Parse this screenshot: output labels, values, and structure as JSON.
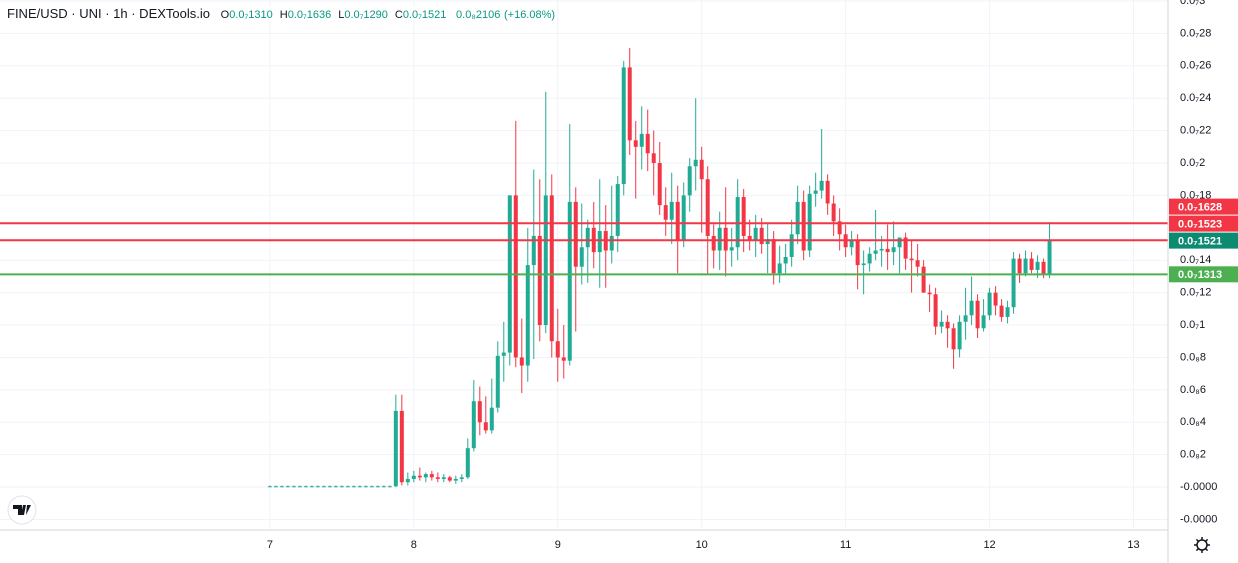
{
  "chart_data": {
    "type": "candlestick",
    "title": "FINE/USD · UNI · 1h · DEXTools.io",
    "ohlc_legend": [
      {
        "key": "O",
        "value": "0.0₇1310"
      },
      {
        "key": "H",
        "value": "0.0₇1636"
      },
      {
        "key": "L",
        "value": "0.0₇1290"
      },
      {
        "key": "C",
        "value": "0.0₇1521"
      }
    ],
    "change": "0.0₈2106",
    "change_pct": "(+16.08%)",
    "up_color": "#22ab94",
    "down_color": "#f23645",
    "x": [
      0,
      1,
      2,
      3,
      4,
      5,
      6,
      7,
      8,
      9,
      10,
      11,
      12,
      13,
      14,
      15,
      16,
      17,
      18,
      19,
      20,
      21,
      22,
      23,
      24,
      25,
      26,
      27,
      28,
      29,
      30,
      31,
      32,
      33,
      34,
      35,
      36,
      37,
      38,
      39,
      40,
      41,
      42,
      43,
      44,
      45,
      46,
      47,
      48,
      49,
      50,
      51,
      52,
      53,
      54,
      55,
      56,
      57,
      58,
      59,
      60,
      61,
      62,
      63,
      64,
      65,
      66,
      67,
      68,
      69,
      70,
      71,
      72,
      73,
      74,
      75,
      76,
      77,
      78,
      79,
      80,
      81,
      82,
      83,
      84,
      85,
      86,
      87,
      88,
      89,
      90,
      91,
      92,
      93,
      94,
      95,
      96,
      97,
      98,
      99,
      100,
      101,
      102,
      103,
      104,
      105,
      106,
      107,
      108,
      109,
      110,
      111,
      112,
      113,
      114,
      115,
      116,
      117,
      118,
      119,
      120,
      121,
      122,
      123,
      124,
      125,
      126,
      127,
      128,
      129,
      130
    ],
    "open": [
      5e-11,
      5e-11,
      5e-11,
      5e-11,
      5e-11,
      5e-11,
      5e-11,
      5e-11,
      5e-11,
      5e-11,
      5e-11,
      5e-11,
      5e-11,
      5e-11,
      5e-11,
      5e-11,
      5e-11,
      5e-11,
      5e-11,
      5e-11,
      5e-11,
      5e-11,
      4.7e-09,
      3e-10,
      5e-10,
      7e-10,
      6e-10,
      8e-10,
      6e-10,
      5e-10,
      6e-10,
      4e-10,
      5e-10,
      6e-10,
      2.4e-09,
      5.3e-09,
      4e-09,
      3.5e-09,
      4.9e-09,
      8.1e-09,
      8.3e-09,
      1.8e-08,
      8e-09,
      7.5e-09,
      1.37e-08,
      1.55e-08,
      1e-08,
      1.8e-08,
      9e-09,
      8e-09,
      7.8e-09,
      1.76e-08,
      1.36e-08,
      1.48e-08,
      1.6e-08,
      1.45e-08,
      1.58e-08,
      1.46e-08,
      1.55e-08,
      1.87e-08,
      2.59e-08,
      2.14e-08,
      2.1e-08,
      2.18e-08,
      2.06e-08,
      2e-08,
      1.74e-08,
      1.65e-08,
      1.76e-08,
      1.52e-08,
      1.8e-08,
      1.98e-08,
      2.02e-08,
      1.9e-08,
      1.55e-08,
      1.46e-08,
      1.6e-08,
      1.46e-08,
      1.48e-08,
      1.79e-08,
      1.55e-08,
      1.52e-08,
      1.6e-08,
      1.5e-08,
      1.53e-08,
      1.32e-08,
      1.38e-08,
      1.42e-08,
      1.56e-08,
      1.76e-08,
      1.46e-08,
      1.81e-08,
      1.83e-08,
      1.89e-08,
      1.75e-08,
      1.64e-08,
      1.56e-08,
      1.48e-08,
      1.52e-08,
      1.37e-08,
      1.38e-08,
      1.44e-08,
      1.46e-08,
      1.47e-08,
      1.45e-08,
      1.48e-08,
      1.54e-08,
      1.41e-08,
      1.4e-08,
      1.36e-08,
      1.2e-08,
      1.19e-08,
      9.9e-09,
      1.02e-08,
      9.8e-09,
      8.5e-09,
      1.02e-08,
      1.06e-08,
      1.15e-08,
      9.8e-09,
      1.06e-08,
      1.2e-08,
      1.12e-08,
      1.05e-08,
      1.11e-08,
      1.41e-08,
      1.32e-08,
      1.41e-08,
      1.34e-08,
      1.39e-08,
      1.31e-08
    ],
    "high": [
      1e-10,
      1e-10,
      1e-10,
      1e-10,
      1e-10,
      1e-10,
      1e-10,
      1e-10,
      1e-10,
      1e-10,
      1e-10,
      1e-10,
      1e-10,
      1e-10,
      1e-10,
      1e-10,
      1e-10,
      1e-10,
      1e-10,
      1e-10,
      1e-10,
      5.7e-09,
      5.7e-09,
      9e-10,
      1e-09,
      1.2e-09,
      9e-10,
      1e-09,
      9e-10,
      8e-10,
      7e-10,
      7e-10,
      8e-10,
      3e-09,
      6.6e-09,
      6.2e-09,
      5.6e-09,
      6.7e-09,
      9e-09,
      1.02e-08,
      1.8e-08,
      2.26e-08,
      1.04e-08,
      1.6e-08,
      1.96e-08,
      1.9e-08,
      2.44e-08,
      1.93e-08,
      1.1e-08,
      1e-08,
      2.24e-08,
      1.85e-08,
      1.75e-08,
      1.65e-08,
      1.76e-08,
      1.9e-08,
      1.74e-08,
      1.86e-08,
      1.92e-08,
      2.63e-08,
      2.71e-08,
      2.26e-08,
      2.35e-08,
      2.33e-08,
      2.2e-08,
      2.13e-08,
      1.85e-08,
      1.94e-08,
      1.86e-08,
      1.88e-08,
      2.03e-08,
      2.4e-08,
      2.1e-08,
      1.98e-08,
      1.62e-08,
      1.7e-08,
      1.85e-08,
      1.6e-08,
      1.9e-08,
      1.84e-08,
      1.65e-08,
      1.68e-08,
      1.66e-08,
      1.63e-08,
      1.58e-08,
      1.49e-08,
      1.5e-08,
      1.65e-08,
      1.86e-08,
      1.83e-08,
      1.86e-08,
      1.94e-08,
      2.21e-08,
      1.93e-08,
      1.8e-08,
      1.72e-08,
      1.62e-08,
      1.58e-08,
      1.56e-08,
      1.46e-08,
      1.48e-08,
      1.71e-08,
      1.55e-08,
      1.62e-08,
      1.64e-08,
      1.54e-08,
      1.57e-08,
      1.52e-08,
      1.5e-08,
      1.4e-08,
      1.25e-08,
      1.23e-08,
      1.09e-08,
      1.06e-08,
      1.01e-08,
      1.06e-08,
      1.23e-08,
      1.3e-08,
      1.19e-08,
      1.16e-08,
      1.23e-08,
      1.24e-08,
      1.16e-08,
      1.15e-08,
      1.45e-08,
      1.44e-08,
      1.46e-08,
      1.45e-08,
      1.43e-08,
      1.41e-08,
      1.636e-08
    ],
    "low": [
      0,
      0,
      0,
      0,
      0,
      0,
      0,
      0,
      0,
      0,
      0,
      0,
      0,
      0,
      0,
      0,
      0,
      0,
      0,
      0,
      0,
      0,
      1e-10,
      1e-10,
      3e-10,
      4e-10,
      3e-10,
      4e-10,
      3e-10,
      3e-10,
      3e-10,
      2e-10,
      3e-10,
      5e-10,
      2.2e-09,
      3.2e-09,
      3.3e-09,
      3.3e-09,
      4.6e-09,
      6.5e-09,
      7.5e-09,
      7.4e-09,
      5.8e-09,
      6.5e-09,
      7.9e-09,
      9e-09,
      9.5e-09,
      8e-09,
      6.5e-09,
      6.7e-09,
      7.5e-09,
      9.6e-09,
      1.25e-08,
      1.26e-08,
      1.35e-08,
      1.23e-08,
      1.23e-08,
      1.38e-08,
      1.45e-08,
      1.8e-08,
      2.05e-08,
      1.78e-08,
      1.96e-08,
      1.95e-08,
      1.8e-08,
      1.68e-08,
      1.55e-08,
      1.5e-08,
      1.32e-08,
      1.48e-08,
      1.7e-08,
      1.83e-08,
      1.57e-08,
      1.31e-08,
      1.35e-08,
      1.34e-08,
      1.3e-08,
      1.36e-08,
      1.4e-08,
      1.45e-08,
      1.46e-08,
      1.42e-08,
      1.44e-08,
      1.32e-08,
      1.25e-08,
      1.26e-08,
      1.31e-08,
      1.36e-08,
      1.5e-08,
      1.4e-08,
      1.42e-08,
      1.73e-08,
      1.78e-08,
      1.68e-08,
      1.55e-08,
      1.46e-08,
      1.42e-08,
      1.43e-08,
      1.22e-08,
      1.19e-08,
      1.33e-08,
      1.4e-08,
      1.36e-08,
      1.34e-08,
      1.37e-08,
      1.32e-08,
      1.34e-08,
      1.2e-08,
      1.3e-08,
      1.2e-08,
      1.08e-08,
      9.4e-09,
      9.5e-09,
      8.6e-09,
      7.3e-09,
      8e-09,
      9.1e-09,
      1e-08,
      9.2e-09,
      9.6e-09,
      1.03e-08,
      1.06e-08,
      1.02e-08,
      1.01e-08,
      1.07e-08,
      1.26e-08,
      1.3e-08,
      1.32e-08,
      1.29e-08,
      1.29e-08,
      1.29e-08
    ],
    "close": [
      5e-11,
      5e-11,
      5e-11,
      5e-11,
      5e-11,
      5e-11,
      5e-11,
      5e-11,
      5e-11,
      5e-11,
      5e-11,
      5e-11,
      5e-11,
      5e-11,
      5e-11,
      5e-11,
      5e-11,
      5e-11,
      5e-11,
      5e-11,
      5e-11,
      4.7e-09,
      3e-10,
      5e-10,
      7e-10,
      6e-10,
      8e-10,
      6e-10,
      5e-10,
      6e-10,
      4e-10,
      5e-10,
      6e-10,
      2.4e-09,
      5.3e-09,
      4e-09,
      3.5e-09,
      4.9e-09,
      8.1e-09,
      8.3e-09,
      1.8e-08,
      8e-09,
      7.5e-09,
      1.37e-08,
      1.55e-08,
      1e-08,
      1.8e-08,
      9e-09,
      8e-09,
      7.8e-09,
      1.76e-08,
      1.36e-08,
      1.48e-08,
      1.6e-08,
      1.45e-08,
      1.58e-08,
      1.46e-08,
      1.55e-08,
      1.87e-08,
      2.59e-08,
      2.14e-08,
      2.1e-08,
      2.18e-08,
      2.06e-08,
      2e-08,
      1.74e-08,
      1.65e-08,
      1.76e-08,
      1.52e-08,
      1.8e-08,
      1.98e-08,
      2.02e-08,
      1.9e-08,
      1.55e-08,
      1.46e-08,
      1.6e-08,
      1.46e-08,
      1.48e-08,
      1.79e-08,
      1.55e-08,
      1.52e-08,
      1.6e-08,
      1.5e-08,
      1.53e-08,
      1.32e-08,
      1.38e-08,
      1.42e-08,
      1.56e-08,
      1.76e-08,
      1.46e-08,
      1.81e-08,
      1.83e-08,
      1.89e-08,
      1.75e-08,
      1.64e-08,
      1.56e-08,
      1.48e-08,
      1.52e-08,
      1.37e-08,
      1.38e-08,
      1.44e-08,
      1.46e-08,
      1.47e-08,
      1.45e-08,
      1.48e-08,
      1.54e-08,
      1.41e-08,
      1.4e-08,
      1.36e-08,
      1.2e-08,
      1.19e-08,
      9.9e-09,
      1.02e-08,
      9.8e-09,
      8.5e-09,
      1.02e-08,
      1.06e-08,
      1.15e-08,
      9.8e-09,
      1.06e-08,
      1.2e-08,
      1.12e-08,
      1.05e-08,
      1.11e-08,
      1.41e-08,
      1.32e-08,
      1.41e-08,
      1.34e-08,
      1.39e-08,
      1.31e-08,
      1.521e-08
    ],
    "xlim": [
      -45,
      149.75
    ],
    "xticks": [
      {
        "value": 0,
        "label": "7"
      },
      {
        "value": 24,
        "label": "8"
      },
      {
        "value": 48,
        "label": "9"
      },
      {
        "value": 72,
        "label": "10"
      },
      {
        "value": 96,
        "label": "11"
      },
      {
        "value": 120,
        "label": "12"
      },
      {
        "value": 144,
        "label": "13"
      }
    ],
    "ylim": [
      -2.65e-09,
      3.006e-08
    ],
    "yticks": [
      {
        "value": 3e-08,
        "label": "0.0₇3"
      },
      {
        "value": 2.8e-08,
        "label": "0.0₇28"
      },
      {
        "value": 2.6e-08,
        "label": "0.0₇26"
      },
      {
        "value": 2.4e-08,
        "label": "0.0₇24"
      },
      {
        "value": 2.2e-08,
        "label": "0.0₇22"
      },
      {
        "value": 2e-08,
        "label": "0.0₇2"
      },
      {
        "value": 1.8e-08,
        "label": "0.0₇18"
      },
      {
        "value": 1.4e-08,
        "label": "0.0₇14"
      },
      {
        "value": 1.2e-08,
        "label": "0.0₇12"
      },
      {
        "value": 1e-08,
        "label": "0.0₇1"
      },
      {
        "value": 8e-09,
        "label": "0.0₈8"
      },
      {
        "value": 6e-09,
        "label": "0.0₈6"
      },
      {
        "value": 4e-09,
        "label": "0.0₈4"
      },
      {
        "value": 2e-09,
        "label": "0.0₈2"
      },
      {
        "value": 0,
        "label": "-0.0000"
      },
      {
        "value": -2e-09,
        "label": "-0.0000"
      }
    ],
    "grid": true,
    "price_lines": [
      {
        "value": 1.628e-08,
        "label": "0.0₇1628",
        "color": "#f23645"
      },
      {
        "value": 1.523e-08,
        "label": "0.0₇1523",
        "color": "#f23645"
      },
      {
        "value": 1.313e-08,
        "label": "0.0₇1313",
        "color": "#4caf50"
      }
    ],
    "last_price": {
      "value": 1.521e-08,
      "label": "0.0₇1521",
      "color": "#0c8a72"
    }
  }
}
